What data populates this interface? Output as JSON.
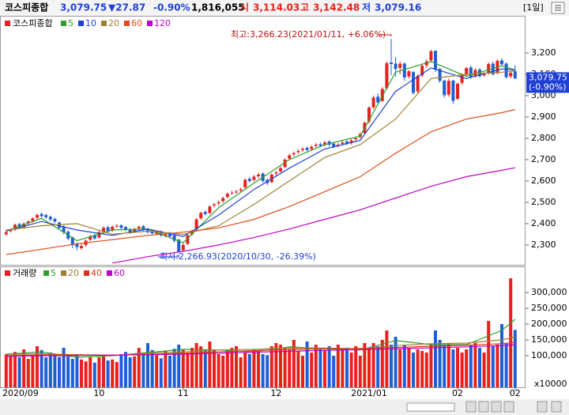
{
  "header": {
    "name": "코스피종합",
    "price": "3,079.75",
    "change": "▼27.87",
    "change_pct": "-0.90%",
    "volume": "1,816,055",
    "open_label": "시",
    "open": "3,114.03",
    "high_label": "고",
    "high": "3,142.48",
    "low_label": "저",
    "low": "3,079.16",
    "period": "[1일]"
  },
  "chart_data": [
    {
      "type": "candlestick",
      "title": "코스피종합",
      "up_color": "#e8211d",
      "down_color": "#1f5fd6",
      "open": [
        2350,
        2365,
        2372,
        2398,
        2383,
        2402,
        2412,
        2428,
        2445,
        2440,
        2432,
        2422,
        2405,
        2385,
        2362,
        2335,
        2305,
        2285,
        2300,
        2325,
        2345,
        2335,
        2362,
        2383,
        2368,
        2388,
        2392,
        2384,
        2374,
        2362,
        2378,
        2388,
        2375,
        2364,
        2352,
        2364,
        2342,
        2355,
        2345,
        2325,
        2275,
        2305,
        2350,
        2375,
        2425,
        2455,
        2450,
        2485,
        2495,
        2505,
        2525,
        2545,
        2548,
        2555,
        2570,
        2610,
        2605,
        2622,
        2635,
        2605,
        2595,
        2635,
        2645,
        2665,
        2705,
        2725,
        2735,
        2745,
        2755,
        2750,
        2765,
        2772,
        2770,
        2785,
        2775,
        2765,
        2774,
        2785,
        2778,
        2795,
        2806,
        2825,
        2880,
        2945,
        2995,
        2975,
        3035,
        3155,
        3150,
        3130,
        3150,
        3090,
        3110,
        3020,
        3095,
        3142,
        3165,
        3210,
        3125,
        3070,
        3005,
        3070,
        2985,
        3060,
        3100,
        3132,
        3090,
        3122,
        3095,
        3105,
        3150,
        3105,
        3165,
        3150,
        3090,
        3114.03
      ],
      "high": [
        2368,
        2378,
        2400,
        2404,
        2406,
        2416,
        2430,
        2448,
        2452,
        2446,
        2438,
        2428,
        2410,
        2392,
        2368,
        2340,
        2312,
        2305,
        2326,
        2348,
        2352,
        2366,
        2388,
        2390,
        2392,
        2398,
        2398,
        2390,
        2380,
        2382,
        2392,
        2394,
        2380,
        2370,
        2366,
        2368,
        2358,
        2362,
        2350,
        2330,
        2308,
        2350,
        2372,
        2426,
        2456,
        2462,
        2486,
        2498,
        2508,
        2526,
        2546,
        2554,
        2558,
        2568,
        2612,
        2618,
        2628,
        2638,
        2640,
        2612,
        2636,
        2648,
        2668,
        2706,
        2728,
        2738,
        2748,
        2758,
        2762,
        2768,
        2778,
        2780,
        2788,
        2790,
        2780,
        2778,
        2788,
        2792,
        2796,
        2806,
        2828,
        2878,
        2950,
        3000,
        3010,
        3040,
        3160,
        3266.23,
        3180,
        3160,
        3155,
        3120,
        3115,
        3100,
        3150,
        3170,
        3215,
        3212,
        3130,
        3075,
        3080,
        3075,
        3060,
        3105,
        3135,
        3140,
        3128,
        3130,
        3110,
        3155,
        3160,
        3170,
        3175,
        3155,
        3115,
        3142.48
      ],
      "low": [
        2342,
        2358,
        2366,
        2378,
        2376,
        2395,
        2405,
        2420,
        2428,
        2422,
        2412,
        2402,
        2372,
        2350,
        2322,
        2285,
        2275,
        2278,
        2292,
        2318,
        2324,
        2330,
        2356,
        2358,
        2362,
        2380,
        2374,
        2364,
        2352,
        2356,
        2370,
        2364,
        2354,
        2348,
        2346,
        2338,
        2336,
        2334,
        2312,
        2266.93,
        2270,
        2300,
        2344,
        2370,
        2418,
        2438,
        2444,
        2476,
        2486,
        2498,
        2518,
        2536,
        2540,
        2546,
        2564,
        2592,
        2598,
        2612,
        2592,
        2580,
        2590,
        2626,
        2638,
        2660,
        2698,
        2716,
        2726,
        2736,
        2738,
        2742,
        2756,
        2758,
        2762,
        2762,
        2752,
        2756,
        2766,
        2768,
        2770,
        2786,
        2798,
        2820,
        2870,
        2938,
        2960,
        2970,
        3030,
        3096,
        3090,
        3100,
        3070,
        3080,
        3005,
        3010,
        3085,
        3130,
        3155,
        3110,
        3060,
        2990,
        2995,
        2960,
        2980,
        3050,
        3090,
        3080,
        3085,
        3085,
        3088,
        3098,
        3095,
        3100,
        3140,
        3080,
        3080,
        3079.16
      ],
      "close": [
        2360,
        2370,
        2395,
        2385,
        2400,
        2410,
        2425,
        2440,
        2435,
        2430,
        2420,
        2410,
        2380,
        2360,
        2330,
        2300,
        2290,
        2295,
        2320,
        2340,
        2330,
        2360,
        2380,
        2365,
        2385,
        2390,
        2380,
        2370,
        2360,
        2375,
        2385,
        2370,
        2360,
        2355,
        2360,
        2345,
        2350,
        2340,
        2320,
        2268,
        2300,
        2345,
        2365,
        2420,
        2450,
        2445,
        2480,
        2490,
        2500,
        2520,
        2540,
        2545,
        2550,
        2560,
        2605,
        2600,
        2620,
        2630,
        2600,
        2590,
        2630,
        2640,
        2660,
        2700,
        2720,
        2730,
        2740,
        2750,
        2745,
        2760,
        2770,
        2765,
        2780,
        2770,
        2760,
        2770,
        2780,
        2775,
        2790,
        2800,
        2820,
        2873,
        2944,
        2991,
        2968,
        3031,
        3152,
        3148,
        3125,
        3149,
        3085,
        3114,
        3013,
        3092,
        3140,
        3160,
        3208,
        3122,
        3069,
        3002,
        3069,
        2976,
        3056,
        3097,
        3129,
        3087,
        3120,
        3091,
        3100,
        3148,
        3100,
        3163,
        3147,
        3086,
        3107,
        3079.75
      ],
      "series": [
        {
          "name": "5",
          "color": "#2ca02c",
          "x": [
            0,
            8,
            16,
            24,
            32,
            40,
            48,
            56,
            64,
            72,
            80,
            88,
            96,
            104,
            112,
            115
          ],
          "values": [
            2365,
            2425,
            2320,
            2370,
            2375,
            2310,
            2475,
            2590,
            2700,
            2770,
            2810,
            3110,
            3160,
            3090,
            3140,
            3120
          ]
        },
        {
          "name": "10",
          "color": "#1f3fd6",
          "x": [
            0,
            8,
            16,
            24,
            32,
            40,
            48,
            56,
            64,
            72,
            80,
            88,
            96,
            104,
            112,
            115
          ],
          "values": [
            2365,
            2410,
            2370,
            2345,
            2375,
            2340,
            2440,
            2560,
            2660,
            2750,
            2790,
            3020,
            3130,
            3080,
            3125,
            3120
          ]
        },
        {
          "name": "20",
          "color": "#a08030",
          "x": [
            0,
            8,
            16,
            24,
            32,
            40,
            48,
            56,
            64,
            72,
            80,
            88,
            96,
            104,
            112,
            115
          ],
          "values": [
            2370,
            2390,
            2400,
            2350,
            2365,
            2350,
            2390,
            2490,
            2600,
            2710,
            2770,
            2890,
            3080,
            3100,
            3110,
            3115
          ]
        },
        {
          "name": "60",
          "color": "#e0501a",
          "x": [
            0,
            8,
            16,
            24,
            32,
            40,
            48,
            56,
            64,
            72,
            80,
            88,
            96,
            104,
            112,
            115
          ],
          "values": [
            2255,
            2280,
            2305,
            2325,
            2345,
            2360,
            2380,
            2420,
            2480,
            2550,
            2620,
            2730,
            2830,
            2890,
            2920,
            2935
          ]
        },
        {
          "name": "120",
          "color": "#c000c8",
          "x": [
            24,
            32,
            40,
            48,
            56,
            64,
            72,
            80,
            88,
            96,
            104,
            112,
            115
          ],
          "values": [
            2215,
            2245,
            2270,
            2300,
            2335,
            2375,
            2420,
            2465,
            2520,
            2575,
            2620,
            2650,
            2662
          ]
        }
      ],
      "ylim": [
        2207,
        3374
      ],
      "yticks": [
        {
          "value": 2300,
          "label": "2,300"
        },
        {
          "value": 2400,
          "label": "2,400"
        },
        {
          "value": 2500,
          "label": "2,500"
        },
        {
          "value": 2600,
          "label": "2,600"
        },
        {
          "value": 2700,
          "label": "2,700"
        },
        {
          "value": 2800,
          "label": "2,800"
        },
        {
          "value": 2900,
          "label": "2,900"
        },
        {
          "value": 3000,
          "label": "3,000"
        },
        {
          "value": 3100,
          "label": "3,100"
        },
        {
          "value": 3200,
          "label": "3,200"
        }
      ],
      "annotations": [
        "최고:3,266.23(2021/01/11, +6.06%)",
        "최저:2,266.93(2020/10/30, -26.39%)"
      ],
      "price_tag_change": "(-0.90%)"
    },
    {
      "type": "bar",
      "title": "거래량",
      "categories": [
        "2020/09",
        null,
        null,
        null,
        null,
        null,
        null,
        null,
        null,
        null,
        null,
        null,
        null,
        null,
        null,
        null,
        null,
        null,
        null,
        null,
        null,
        "10",
        null,
        null,
        null,
        null,
        null,
        null,
        null,
        null,
        null,
        null,
        null,
        null,
        null,
        null,
        null,
        null,
        null,
        null,
        "11",
        null,
        null,
        null,
        null,
        null,
        null,
        null,
        null,
        null,
        null,
        null,
        null,
        null,
        null,
        null,
        null,
        null,
        null,
        null,
        null,
        "12",
        null,
        null,
        null,
        null,
        null,
        null,
        null,
        null,
        null,
        null,
        null,
        null,
        null,
        null,
        null,
        null,
        null,
        null,
        null,
        null,
        "2021/01",
        null,
        null,
        null,
        null,
        null,
        null,
        null,
        null,
        null,
        null,
        null,
        null,
        null,
        null,
        null,
        null,
        null,
        null,
        null,
        "02",
        null,
        null,
        null,
        null,
        null,
        null,
        null,
        null,
        null,
        null,
        null,
        null,
        "02"
      ],
      "values": [
        105000,
        98000,
        112000,
        95000,
        120000,
        90000,
        100000,
        130000,
        118000,
        95000,
        110000,
        102000,
        96000,
        125000,
        105000,
        90000,
        100000,
        88000,
        82000,
        95000,
        78000,
        95000,
        102000,
        85000,
        88000,
        80000,
        105000,
        112000,
        95000,
        98000,
        125000,
        108000,
        140000,
        118000,
        102000,
        92000,
        115000,
        100000,
        122000,
        135000,
        120000,
        110000,
        125000,
        140000,
        130000,
        115000,
        145000,
        120000,
        105000,
        100000,
        118000,
        125000,
        130000,
        95000,
        110000,
        105000,
        120000,
        115000,
        105000,
        102000,
        130000,
        140000,
        135000,
        125000,
        120000,
        150000,
        115000,
        100000,
        145000,
        110000,
        135000,
        125000,
        118000,
        130000,
        100000,
        135000,
        120000,
        125000,
        110000,
        130000,
        100000,
        140000,
        125000,
        140000,
        130000,
        150000,
        180000,
        135000,
        160000,
        120000,
        135000,
        125000,
        110000,
        120000,
        115000,
        110000,
        135000,
        180000,
        150000,
        135000,
        140000,
        120000,
        125000,
        110000,
        120000,
        135000,
        140000,
        125000,
        110000,
        210000,
        130000,
        135000,
        200000,
        140000,
        345000,
        181606
      ],
      "series": [
        {
          "name": "5",
          "color": "#2ca02c",
          "x": [
            0,
            8,
            16,
            24,
            32,
            40,
            48,
            56,
            64,
            72,
            80,
            88,
            96,
            104,
            112,
            115
          ],
          "values": [
            105000,
            112000,
            95000,
            100000,
            110000,
            120000,
            118000,
            112000,
            128000,
            122000,
            118000,
            148000,
            135000,
            135000,
            180000,
            215000
          ]
        },
        {
          "name": "20",
          "color": "#a08030",
          "x": [
            0,
            8,
            16,
            24,
            32,
            40,
            48,
            56,
            64,
            72,
            80,
            88,
            96,
            104,
            112,
            115
          ],
          "values": [
            104000,
            106000,
            103000,
            100000,
            108000,
            112000,
            118000,
            120000,
            125000,
            124000,
            122000,
            132000,
            138000,
            140000,
            150000,
            160000
          ]
        },
        {
          "name": "40",
          "color": "#e0301a",
          "x": [
            0,
            8,
            16,
            24,
            32,
            40,
            48,
            56,
            64,
            72,
            80,
            88,
            96,
            104,
            112,
            115
          ],
          "values": [
            100000,
            102000,
            103000,
            102000,
            104000,
            108000,
            112000,
            116000,
            120000,
            122000,
            123000,
            126000,
            130000,
            133000,
            138000,
            142000
          ]
        },
        {
          "name": "60",
          "color": "#c000c8",
          "x": [
            0,
            8,
            16,
            24,
            32,
            40,
            48,
            56,
            64,
            72,
            80,
            88,
            96,
            104,
            112,
            115
          ],
          "values": [
            98000,
            100000,
            101000,
            102000,
            103000,
            105000,
            108000,
            111000,
            114000,
            117000,
            119000,
            122000,
            125000,
            128000,
            132000,
            135000
          ]
        }
      ],
      "ylim": [
        0,
        380000
      ],
      "yticks": [
        {
          "value": 100000,
          "label": "100,000"
        },
        {
          "value": 150000,
          "label": "150,000"
        },
        {
          "value": 200000,
          "label": "200,000"
        },
        {
          "value": 250000,
          "label": "250,000"
        },
        {
          "value": 300000,
          "label": "300,000"
        }
      ],
      "unit_label": "x10000"
    }
  ]
}
